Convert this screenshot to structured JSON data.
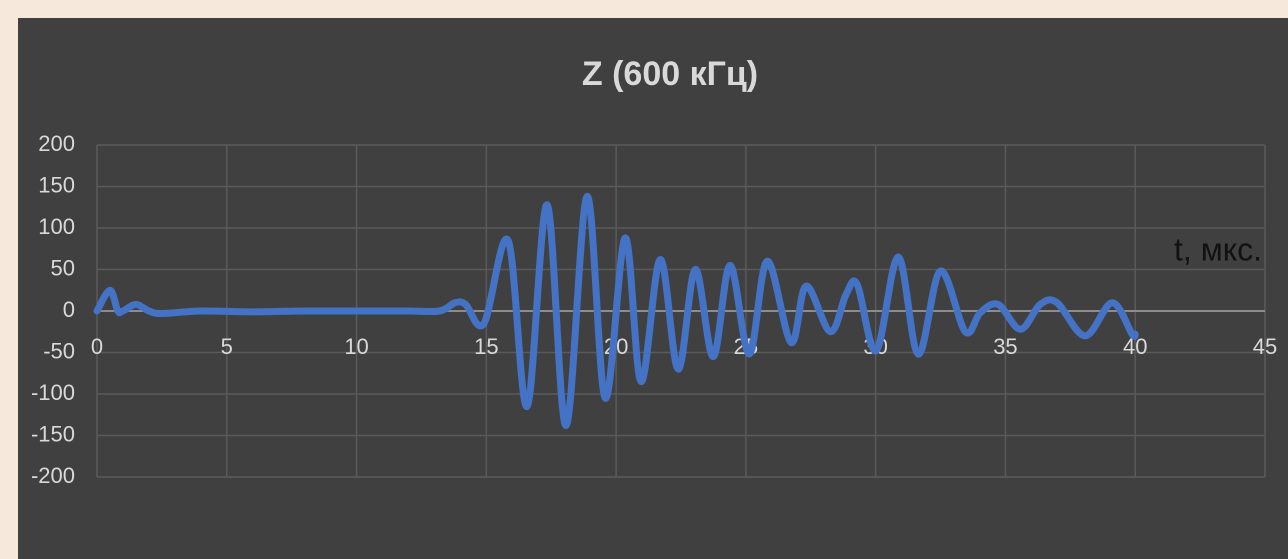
{
  "chart_data": {
    "type": "line",
    "title": "Z (600 кГц)",
    "x_label": "t, мкс.",
    "xlim": [
      0,
      45
    ],
    "xticks": [
      0,
      5,
      10,
      15,
      20,
      25,
      30,
      35,
      40,
      45
    ],
    "ylim": [
      -200,
      200
    ],
    "yticks": [
      -200,
      -150,
      -100,
      -50,
      0,
      50,
      100,
      150,
      200
    ],
    "grid": true,
    "x": [
      0,
      0.5,
      0.8,
      1.0,
      1.5,
      2.0,
      2.5,
      4,
      6,
      8,
      10,
      12,
      13.2,
      13.8,
      14.2,
      14.91,
      15.84,
      16.57,
      17.34,
      18.07,
      18.88,
      19.58,
      20.35,
      20.96,
      21.7,
      22.39,
      23.05,
      23.74,
      24.39,
      25.13,
      25.82,
      26.74,
      27.32,
      28.25,
      28.86,
      29.29,
      30.02,
      30.87,
      31.64,
      32.49,
      33.45,
      34.03,
      34.72,
      35.57,
      36.34,
      36.99,
      38.07,
      39.11,
      39.88,
      40
    ],
    "series": [
      {
        "name": "Z",
        "color": "#4472c4",
        "values": [
          0,
          25,
          0,
          0,
          8,
          0,
          -3,
          0,
          -1,
          0,
          0,
          0,
          0,
          10,
          8,
          -15,
          85,
          -115,
          128,
          -138,
          138,
          -105,
          88,
          -85,
          62,
          -70,
          50,
          -55,
          55,
          -52,
          60,
          -38,
          30,
          -25,
          20,
          32,
          -48,
          65,
          -52,
          48,
          -25,
          -2,
          8,
          -22,
          8,
          10,
          -30,
          10,
          -28,
          -28
        ]
      }
    ]
  }
}
